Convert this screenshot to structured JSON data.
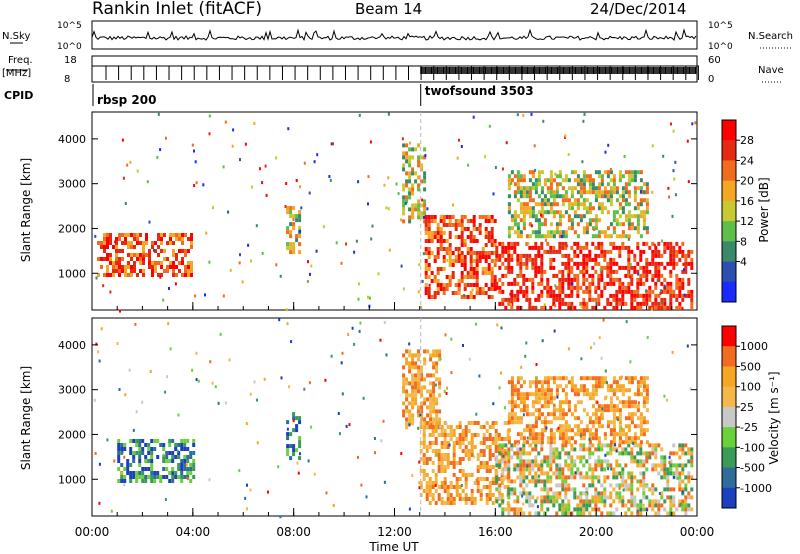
{
  "header": {
    "station": "Rankin Inlet (fitACF)",
    "beam": "Beam 14",
    "date": "24/Dec/2014"
  },
  "top_panels": {
    "nsky_label": "N.Sky",
    "nsearch_label": "N.Search",
    "nsky_ticks": [
      "10^5",
      "10^0"
    ],
    "nsearch_ticks": [
      "10^5",
      "10^0"
    ],
    "freq_label": "Freq.",
    "freq_unit": "[MHz]",
    "freq_ticks": [
      "18",
      "8"
    ],
    "nave_label": "Nave",
    "nave_ticks": [
      "60",
      "0"
    ],
    "cpid_label": "CPID",
    "cpid_segments": [
      {
        "name": "rbsp 200",
        "start_hour": 0.0
      },
      {
        "name": "twofsound 3503",
        "start_hour": 13.0
      }
    ]
  },
  "chart_data": [
    {
      "type": "heatmap",
      "panel": "power",
      "ylabel": "Slant Range [km]",
      "xlabel": "",
      "ylim": [
        180,
        4600
      ],
      "xlim_hours": [
        0,
        24
      ],
      "yticks": [
        "1000",
        "2000",
        "3000",
        "4000"
      ],
      "colorbar": {
        "label": "Power [dB]",
        "ticks": [
          "4",
          "8",
          "12",
          "16",
          "20",
          "24",
          "28"
        ],
        "colors": [
          "#1a2bff",
          "#2d4fb0",
          "#3a8a6a",
          "#5dbf4a",
          "#c8c832",
          "#f5a623",
          "#f36b1e",
          "#e62a12",
          "#ff0000"
        ]
      },
      "echo_regions": [
        {
          "hours": [
            0.2,
            4.0
          ],
          "range_km": [
            1000,
            1900
          ],
          "level": "high"
        },
        {
          "hours": [
            7.7,
            8.2
          ],
          "range_km": [
            1500,
            2500
          ],
          "level": "mid"
        },
        {
          "hours": [
            12.3,
            13.2
          ],
          "range_km": [
            2200,
            3900
          ],
          "level": "mid"
        },
        {
          "hours": [
            13.2,
            16.0
          ],
          "range_km": [
            500,
            2300
          ],
          "level": "high"
        },
        {
          "hours": [
            16.0,
            23.8
          ],
          "range_km": [
            200,
            1700
          ],
          "level": "very-high"
        },
        {
          "hours": [
            16.5,
            22.0
          ],
          "range_km": [
            1800,
            3300
          ],
          "level": "mid"
        }
      ]
    },
    {
      "type": "heatmap",
      "panel": "velocity",
      "ylabel": "Slant Range [km]",
      "xlabel": "Time UT",
      "ylim": [
        180,
        4600
      ],
      "xlim_hours": [
        0,
        24
      ],
      "yticks": [
        "1000",
        "2000",
        "3000",
        "4000"
      ],
      "xticks": [
        "00:00",
        "04:00",
        "08:00",
        "12:00",
        "16:00",
        "20:00",
        "00:00"
      ],
      "colorbar": {
        "label": "Velocity [m s⁻¹]",
        "ticks": [
          "1000",
          "500",
          "100",
          "25",
          "-25",
          "-100",
          "-500",
          "-1000"
        ],
        "colors": [
          "#1c3fbf",
          "#2e6c9a",
          "#3a9a5a",
          "#6cd038",
          "#c8c8c8",
          "#f5b74a",
          "#f5a623",
          "#f36b1e",
          "#ff0000"
        ]
      },
      "echo_regions": [
        {
          "hours": [
            1.0,
            4.0
          ],
          "range_km": [
            1000,
            1900
          ],
          "level": "toward"
        },
        {
          "hours": [
            7.7,
            8.2
          ],
          "range_km": [
            1500,
            2500
          ],
          "level": "toward"
        },
        {
          "hours": [
            12.3,
            13.8
          ],
          "range_km": [
            2200,
            3900
          ],
          "level": "away"
        },
        {
          "hours": [
            13.0,
            16.5
          ],
          "range_km": [
            500,
            2300
          ],
          "level": "away"
        },
        {
          "hours": [
            16.0,
            23.8
          ],
          "range_km": [
            200,
            1800
          ],
          "level": "mixed"
        },
        {
          "hours": [
            16.5,
            22.0
          ],
          "range_km": [
            1800,
            3300
          ],
          "level": "away"
        }
      ]
    }
  ]
}
